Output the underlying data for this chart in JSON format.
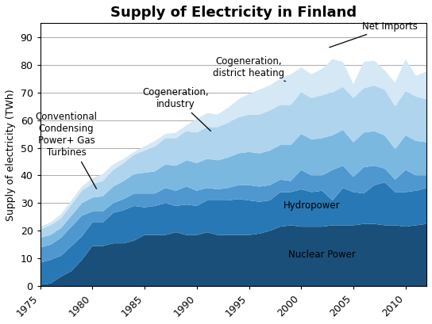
{
  "title": "Supply of Electricity in Finland",
  "ylabel": "Supply of electricity (TWh)",
  "ylim": [
    0,
    95
  ],
  "yticks": [
    0,
    10,
    20,
    30,
    40,
    50,
    60,
    70,
    80,
    90
  ],
  "xticks": [
    1975,
    1980,
    1985,
    1990,
    1995,
    2000,
    2005,
    2010
  ],
  "years": [
    1975,
    1976,
    1977,
    1978,
    1979,
    1980,
    1981,
    1982,
    1983,
    1984,
    1985,
    1986,
    1987,
    1988,
    1989,
    1990,
    1991,
    1992,
    1993,
    1994,
    1995,
    1996,
    1997,
    1998,
    1999,
    2000,
    2001,
    2002,
    2003,
    2004,
    2005,
    2006,
    2007,
    2008,
    2009,
    2010,
    2011,
    2012
  ],
  "series": {
    "Nuclear Power": [
      0.5,
      1.0,
      3.5,
      5.5,
      9.5,
      14.5,
      14.5,
      15.5,
      15.5,
      16.5,
      18.5,
      18.5,
      18.5,
      19.5,
      18.5,
      18.5,
      19.5,
      18.5,
      18.5,
      18.5,
      18.5,
      19.0,
      20.0,
      21.5,
      22.0,
      21.5,
      21.5,
      21.5,
      22.0,
      22.0,
      22.0,
      22.5,
      22.5,
      22.0,
      22.0,
      21.5,
      22.0,
      22.5
    ],
    "Hydropower": [
      8.0,
      8.5,
      7.5,
      9.0,
      8.5,
      8.5,
      8.5,
      11.0,
      12.0,
      12.5,
      10.0,
      10.5,
      11.5,
      9.5,
      11.0,
      10.5,
      11.5,
      12.5,
      12.5,
      13.0,
      12.5,
      11.5,
      11.0,
      12.5,
      12.0,
      13.5,
      12.5,
      13.0,
      9.0,
      13.5,
      12.0,
      11.0,
      14.0,
      15.5,
      12.0,
      12.5,
      12.5,
      13.0
    ],
    "Conventional Condensing Power+ Gas Turbines": [
      5.5,
      5.5,
      6.5,
      7.0,
      7.5,
      4.0,
      4.0,
      3.5,
      4.0,
      4.5,
      5.0,
      4.5,
      5.5,
      5.5,
      6.5,
      5.5,
      4.5,
      4.0,
      4.5,
      5.0,
      5.5,
      5.5,
      5.5,
      4.5,
      4.0,
      7.0,
      6.0,
      5.5,
      11.0,
      8.0,
      5.5,
      9.5,
      7.0,
      5.0,
      4.5,
      8.0,
      5.5,
      4.5
    ],
    "Cogeneration, industry": [
      3.5,
      3.5,
      3.5,
      4.0,
      4.5,
      5.0,
      5.5,
      6.0,
      6.5,
      7.0,
      7.5,
      8.0,
      8.5,
      9.0,
      9.5,
      10.0,
      10.5,
      10.5,
      11.0,
      11.5,
      12.0,
      12.0,
      12.5,
      12.5,
      13.0,
      13.0,
      13.0,
      13.5,
      12.5,
      13.0,
      12.5,
      12.5,
      12.5,
      12.0,
      11.0,
      12.5,
      12.5,
      12.0
    ],
    "Cogeneration, district heating": [
      3.0,
      3.5,
      3.5,
      4.0,
      4.5,
      5.0,
      5.5,
      6.0,
      6.5,
      7.0,
      8.0,
      9.0,
      9.5,
      10.0,
      10.5,
      11.0,
      11.5,
      12.0,
      12.5,
      13.0,
      13.5,
      14.0,
      14.5,
      14.5,
      14.5,
      15.0,
      15.0,
      15.5,
      15.5,
      15.5,
      16.0,
      16.0,
      16.5,
      16.5,
      15.5,
      16.0,
      16.0,
      15.5
    ],
    "Net Imports": [
      1.0,
      1.0,
      1.5,
      1.5,
      1.5,
      2.0,
      2.5,
      2.0,
      1.5,
      1.0,
      1.5,
      2.0,
      1.5,
      2.0,
      2.0,
      5.0,
      5.0,
      4.5,
      5.5,
      6.5,
      7.5,
      9.0,
      9.0,
      9.5,
      11.0,
      9.0,
      8.5,
      9.5,
      12.0,
      9.0,
      5.0,
      9.5,
      9.0,
      7.0,
      8.5,
      11.5,
      7.5,
      10.0
    ]
  },
  "colors": {
    "Nuclear Power": "#1a4f7a",
    "Hydropower": "#2878b5",
    "Conventional Condensing Power+ Gas Turbines": "#4f97cf",
    "Cogeneration, industry": "#7ab8e0",
    "Cogeneration, district heating": "#afd4ed",
    "Net Imports": "#d4e8f5"
  },
  "bg_color": "#ffffff",
  "title_fontsize": 13,
  "axis_fontsize": 9,
  "tick_fontsize": 9
}
